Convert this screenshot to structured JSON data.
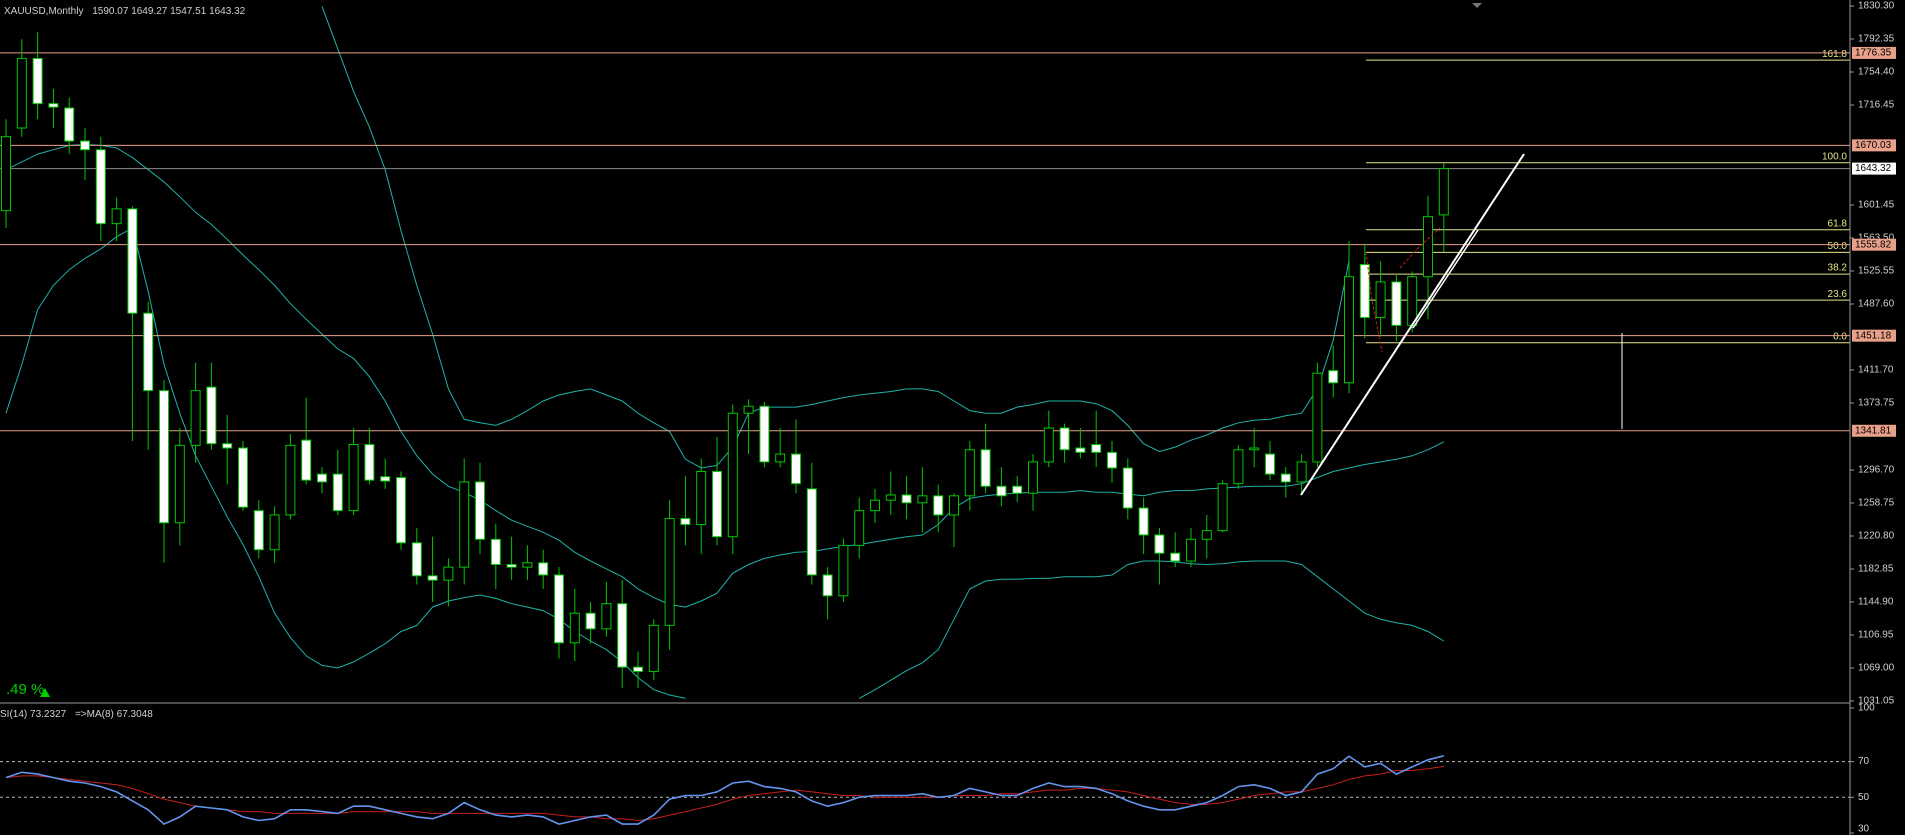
{
  "chart_data": [
    {
      "type": "candlestick",
      "title": "XAUUSD,Monthly",
      "annotation": ".49 %",
      "open": [
        1595,
        1690,
        1770,
        1718,
        1713,
        1675,
        1665,
        1580,
        1597,
        1477,
        1388,
        1236,
        1325,
        1392,
        1327,
        1322,
        1250,
        1205,
        1245,
        1331,
        1292,
        1292,
        1250,
        1326,
        1289,
        1288,
        1213,
        1175,
        1170,
        1185,
        1283,
        1217,
        1188,
        1185,
        1190,
        1176,
        1098,
        1132,
        1114,
        1143,
        1070,
        1065,
        1118,
        1241,
        1234,
        1295,
        1220,
        1362,
        1370,
        1306,
        1315,
        1275,
        1176,
        1152,
        1210,
        1250,
        1262,
        1268,
        1259,
        1267,
        1245,
        1267,
        1320,
        1278,
        1278,
        1270,
        1306,
        1345,
        1322,
        1326,
        1317,
        1299,
        1253,
        1222,
        1201,
        1192,
        1217,
        1227,
        1281,
        1320,
        1315,
        1292,
        1283,
        1306,
        1411,
        1397,
        1533,
        1472,
        1513,
        1463,
        1519,
        1590.07
      ],
      "high": [
        1700,
        1792,
        1800,
        1735,
        1725,
        1690,
        1680,
        1610,
        1600,
        1490,
        1400,
        1345,
        1420,
        1420,
        1360,
        1330,
        1262,
        1255,
        1338,
        1380,
        1300,
        1320,
        1345,
        1345,
        1310,
        1295,
        1230,
        1220,
        1195,
        1310,
        1305,
        1235,
        1220,
        1210,
        1205,
        1185,
        1160,
        1145,
        1168,
        1170,
        1088,
        1125,
        1262,
        1290,
        1310,
        1335,
        1372,
        1378,
        1375,
        1345,
        1355,
        1305,
        1185,
        1218,
        1265,
        1275,
        1295,
        1290,
        1300,
        1280,
        1270,
        1330,
        1350,
        1300,
        1290,
        1315,
        1365,
        1350,
        1345,
        1365,
        1330,
        1310,
        1265,
        1230,
        1225,
        1230,
        1245,
        1285,
        1325,
        1345,
        1330,
        1300,
        1315,
        1420,
        1440,
        1560,
        1557,
        1537,
        1522,
        1525,
        1612,
        1649.27
      ],
      "low": [
        1575,
        1680,
        1700,
        1690,
        1660,
        1630,
        1560,
        1560,
        1330,
        1320,
        1190,
        1210,
        1305,
        1320,
        1280,
        1250,
        1195,
        1190,
        1240,
        1280,
        1270,
        1245,
        1245,
        1280,
        1275,
        1205,
        1165,
        1145,
        1140,
        1165,
        1200,
        1160,
        1170,
        1170,
        1160,
        1080,
        1077,
        1097,
        1105,
        1046,
        1046,
        1055,
        1090,
        1210,
        1200,
        1210,
        1200,
        1315,
        1300,
        1300,
        1270,
        1165,
        1125,
        1145,
        1195,
        1236,
        1245,
        1240,
        1225,
        1225,
        1208,
        1250,
        1270,
        1255,
        1260,
        1250,
        1300,
        1305,
        1310,
        1300,
        1282,
        1240,
        1200,
        1165,
        1185,
        1185,
        1195,
        1225,
        1275,
        1300,
        1285,
        1265,
        1270,
        1300,
        1380,
        1385,
        1448,
        1450,
        1445,
        1455,
        1470,
        1547.51
      ],
      "close": [
        1680,
        1770,
        1718,
        1714,
        1675,
        1665,
        1580,
        1597,
        1477,
        1388,
        1236,
        1325,
        1388,
        1327,
        1322,
        1254,
        1205,
        1245,
        1325,
        1285,
        1283,
        1250,
        1326,
        1285,
        1284,
        1213,
        1175,
        1170,
        1185,
        1283,
        1217,
        1188,
        1185,
        1190,
        1176,
        1098,
        1132,
        1114,
        1143,
        1070,
        1065,
        1118,
        1241,
        1234,
        1295,
        1220,
        1362,
        1370,
        1306,
        1315,
        1281,
        1176,
        1152,
        1210,
        1250,
        1262,
        1268,
        1259,
        1267,
        1245,
        1267,
        1320,
        1278,
        1267,
        1270,
        1306,
        1345,
        1320,
        1317,
        1317,
        1299,
        1253,
        1222,
        1201,
        1192,
        1217,
        1227,
        1281,
        1320,
        1322,
        1292,
        1283,
        1306,
        1408,
        1397,
        1519,
        1472,
        1513,
        1463,
        1519,
        1588,
        1643.32
      ],
      "up_color": "#000000",
      "down_color": "#ffffff",
      "wick_color": "#00c800",
      "series": [
        {
          "color": "#20b2aa",
          "values": [
            null,
            null,
            null,
            null,
            null,
            null,
            null,
            null,
            null,
            null,
            null,
            null,
            null,
            null,
            null,
            null,
            null,
            null,
            null,
            null,
            1830,
            1781,
            1732,
            1691,
            1642,
            1572,
            1509,
            1453,
            1390,
            1355,
            1351,
            1348,
            1355,
            1365,
            1376,
            1383,
            1387,
            1390,
            1383,
            1376,
            1362,
            1351,
            1341,
            1309,
            1299,
            1302,
            1323,
            1362,
            1369,
            1369,
            1369,
            1372,
            1376,
            1380,
            1383,
            1385,
            1387,
            1390,
            1390,
            1387,
            1376,
            1365,
            1362,
            1362,
            1369,
            1372,
            1376,
            1376,
            1376,
            1373,
            1365,
            1348,
            1327,
            1318,
            1323,
            1331,
            1337,
            1345,
            1351,
            1354,
            1355,
            1359,
            1362,
            1390,
            1446,
            1537,
            null,
            null,
            null,
            null,
            null,
            null
          ]
        },
        {
          "color": "#20b2aa",
          "values": [
            1642,
            1651,
            1660,
            1665,
            1670,
            1671,
            1670,
            1667,
            1656,
            1642,
            1628,
            1611,
            1593,
            1579,
            1562,
            1544,
            1527,
            1509,
            1488,
            1470,
            1453,
            1436,
            1425,
            1404,
            1376,
            1341,
            1313,
            1292,
            1278,
            1271,
            1262,
            1250,
            1239,
            1232,
            1225,
            1216,
            1202,
            1192,
            1183,
            1174,
            1160,
            1150,
            1142,
            1139,
            1146,
            1155,
            1178,
            1188,
            1195,
            1199,
            1202,
            1203,
            1206,
            1209,
            1211,
            1214,
            1217,
            1220,
            1222,
            1234,
            1253,
            1264,
            1267,
            1269,
            1270,
            1271,
            1271,
            1271,
            1273,
            1271,
            1271,
            1269,
            1267,
            1271,
            1273,
            1273,
            1275,
            1276,
            1277,
            1278,
            1278,
            1278,
            1281,
            1288,
            1295,
            1299,
            1303,
            1306,
            1309,
            1313,
            1320,
            1329
          ]
        },
        {
          "color": "#20b2aa",
          "values": [
            1362,
            1418,
            1481,
            1509,
            1527,
            1540,
            1551,
            1565,
            1575,
            1502,
            1418,
            1362,
            1313,
            1278,
            1243,
            1211,
            1174,
            1132,
            1104,
            1083,
            1072,
            1069,
            1076,
            1086,
            1097,
            1111,
            1118,
            1139,
            1146,
            1150,
            1153,
            1149,
            1143,
            1139,
            1135,
            1125,
            1111,
            1100,
            1090,
            1076,
            1058,
            1044,
            1038,
            1034,
            null,
            null,
            null,
            null,
            null,
            null,
            null,
            null,
            null,
            null,
            1034,
            1044,
            1055,
            1066,
            1075,
            1090,
            1125,
            1160,
            1169,
            1171,
            1171,
            1172,
            1172,
            1174,
            1174,
            1174,
            1176,
            1188,
            1192,
            1192,
            1191,
            1189,
            1188,
            1189,
            1191,
            1192,
            1192,
            1192,
            1188,
            1174,
            1160,
            1146,
            1132,
            1125,
            1121,
            1118,
            1111,
            1100
          ]
        }
      ],
      "ylim": [
        1031.05,
        1830.3
      ],
      "yticks": [
        {
          "value": 1830.3,
          "label": "1830.30"
        },
        {
          "value": 1792.35,
          "label": "1792.35"
        },
        {
          "value": 1754.4,
          "label": "1754.40"
        },
        {
          "value": 1716.45,
          "label": "1716.45"
        },
        {
          "value": 1601.45,
          "label": "1601.45"
        },
        {
          "value": 1563.5,
          "label": "1563.50"
        },
        {
          "value": 1525.55,
          "label": "1525.55"
        },
        {
          "value": 1487.6,
          "label": "1487.60"
        },
        {
          "value": 1411.7,
          "label": "1411.70"
        },
        {
          "value": 1373.75,
          "label": "1373.75"
        },
        {
          "value": 1296.7,
          "label": "1296.70"
        },
        {
          "value": 1258.75,
          "label": "1258.75"
        },
        {
          "value": 1220.8,
          "label": "1220.80"
        },
        {
          "value": 1182.85,
          "label": "1182.85"
        },
        {
          "value": 1144.9,
          "label": "1144.90"
        },
        {
          "value": 1106.95,
          "label": "1106.95"
        },
        {
          "value": 1069,
          "label": "1069.00"
        },
        {
          "value": 1031.05,
          "label": "1031.05"
        }
      ],
      "levels": [
        1776.35,
        1670.03,
        1555.82,
        1451.18,
        1341.81
      ],
      "level_color": "#e9a08a",
      "fibo": {
        "color": "#e6e68c",
        "ratios": [
          161.8,
          {
            "value": 100,
            "label": "100.0"
          },
          61.8,
          {
            "value": 50,
            "label": "50.0"
          },
          38.2,
          23.6,
          {
            "value": 0,
            "label": "0.0"
          }
        ],
        "prices": [
          1768,
          1650,
          1573,
          1547,
          1522,
          1492,
          1443
        ]
      }
    },
    {
      "type": "line",
      "series": [
        {
          "label": "SI(14)",
          "color": "#6495ed",
          "values": [
            61,
            64,
            63,
            61,
            59,
            58,
            56,
            53,
            48,
            43,
            35,
            39,
            45,
            44,
            43,
            39,
            37,
            38,
            43,
            43,
            42,
            41,
            45,
            45,
            43,
            41,
            39,
            38,
            41,
            47,
            43,
            40,
            39,
            40,
            39,
            35,
            37,
            39,
            40,
            35,
            35,
            40,
            49,
            51,
            51,
            53,
            58,
            59,
            56,
            55,
            53,
            48,
            45,
            47,
            50,
            51,
            51,
            51,
            52,
            50,
            51,
            55,
            53,
            51,
            51,
            55,
            58,
            56,
            56,
            55,
            52,
            48,
            45,
            43,
            43,
            45,
            47,
            51,
            56,
            57,
            55,
            51,
            53,
            63,
            66,
            73,
            67,
            69,
            63,
            67,
            71,
            73.2327
          ]
        },
        {
          "label": "=>MA(8)",
          "color": "#c81e1e",
          "values": [
            61,
            62,
            62,
            61,
            60,
            59,
            58,
            57,
            55,
            52,
            49,
            47,
            45,
            44,
            43,
            42,
            42,
            41,
            41,
            41,
            41,
            41,
            42,
            42,
            42,
            42,
            42,
            41,
            41,
            41,
            41,
            41,
            41,
            41,
            41,
            40,
            39,
            39,
            38,
            38,
            37,
            38,
            40,
            42,
            44,
            46,
            49,
            51,
            52,
            53,
            54,
            53,
            52,
            51,
            51,
            50,
            50,
            50,
            50,
            50,
            51,
            51,
            51,
            52,
            52,
            53,
            54,
            54,
            55,
            55,
            54,
            53,
            51,
            49,
            47,
            46,
            46,
            47,
            49,
            51,
            52,
            53,
            53,
            55,
            57,
            60,
            62,
            63,
            65,
            65,
            66,
            67.3048
          ]
        }
      ],
      "ylim": [
        30,
        100
      ],
      "yticks": [
        100,
        70,
        50,
        30
      ],
      "levels": [
        70,
        50
      ]
    }
  ]
}
